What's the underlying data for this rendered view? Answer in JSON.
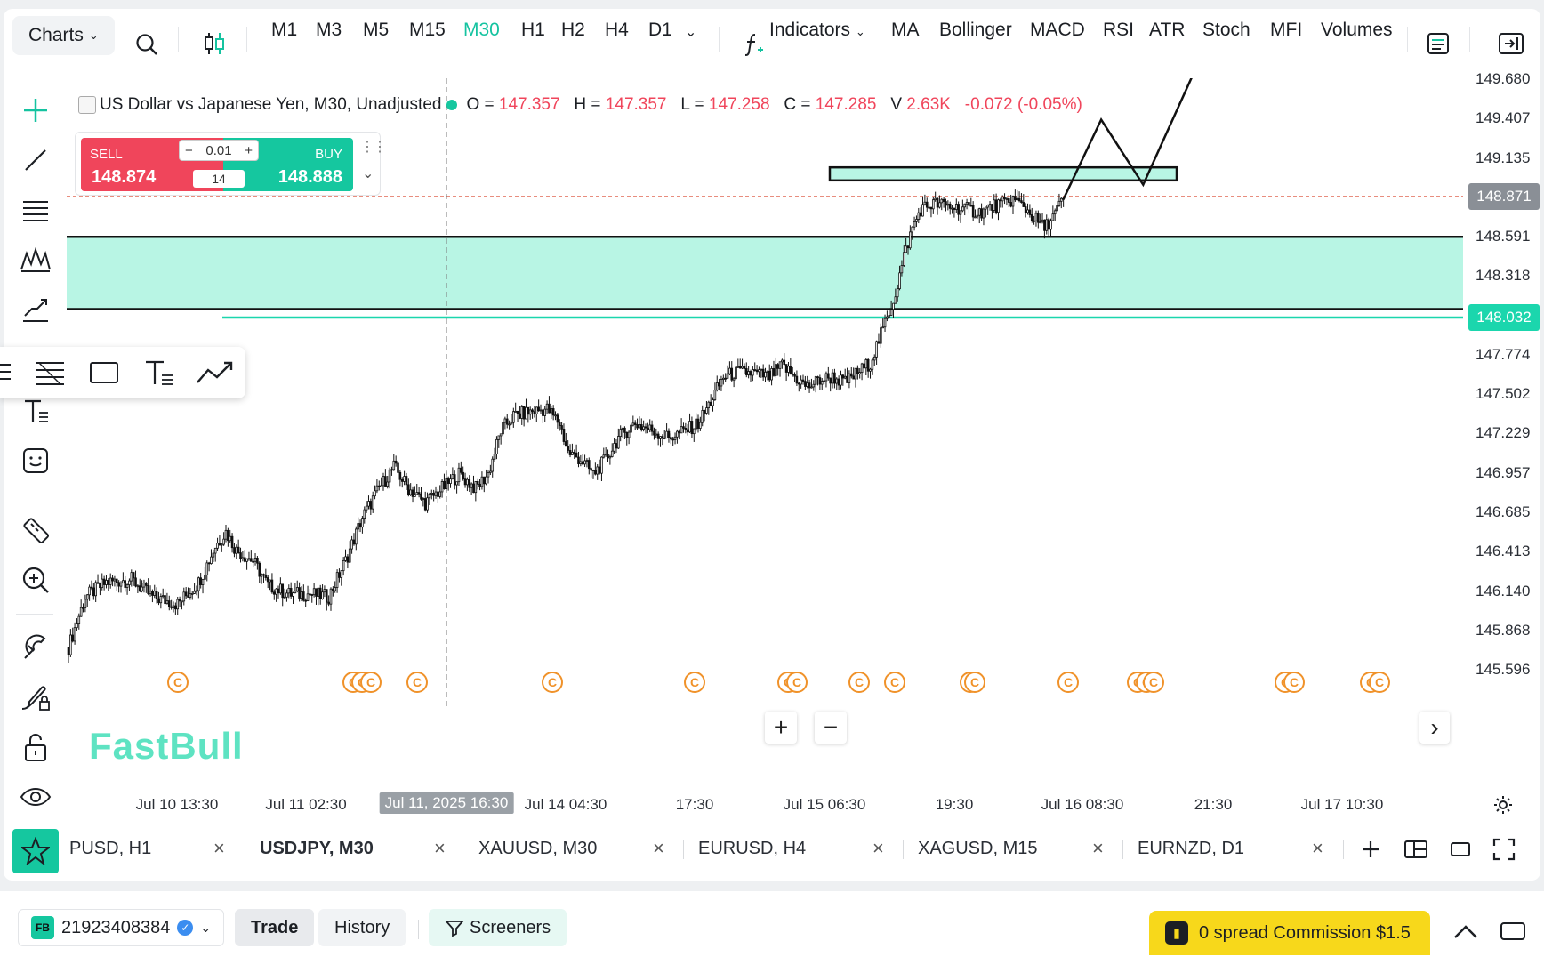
{
  "toolbar": {
    "charts_label": "Charts",
    "timeframes": [
      "M1",
      "M3",
      "M5",
      "M15",
      "M30",
      "H1",
      "H2",
      "H4",
      "D1"
    ],
    "active_timeframe": "M30",
    "indicators_label": "Indicators",
    "indicator_shortcuts": [
      "MA",
      "Bollinger",
      "MACD",
      "RSI",
      "ATR",
      "Stoch",
      "MFI",
      "Volumes"
    ]
  },
  "legend": {
    "title": "US Dollar vs Japanese Yen, M30, Unadjusted",
    "o_label": "O =",
    "o_value": "147.357",
    "h_label": "H =",
    "h_value": "147.357",
    "l_label": "L =",
    "l_value": "147.258",
    "c_label": "C =",
    "c_value": "147.285",
    "v_label": "V",
    "v_value": "2.63K",
    "change": "-0.072 (-0.05%)"
  },
  "trade_widget": {
    "sell_label": "SELL",
    "sell_price": "148.874",
    "buy_label": "BUY",
    "buy_price": "148.888",
    "quantity": "0.01",
    "spread": "14"
  },
  "price_axis": {
    "labels": [
      "149.680",
      "149.407",
      "149.135",
      "148.591",
      "148.318",
      "147.774",
      "147.502",
      "147.229",
      "146.957",
      "146.685",
      "146.413",
      "146.140",
      "145.868",
      "145.596"
    ],
    "current_price_tag": "148.871",
    "line_price_tag": "148.032"
  },
  "time_axis": {
    "labels": [
      "Jul 10 13:30",
      "Jul 11 02:30",
      "Jul 11, 2025 16:30",
      "Jul 14 04:30",
      "17:30",
      "Jul 15 06:30",
      "19:30",
      "Jul 16 08:30",
      "21:30",
      "Jul 17 10:30"
    ],
    "highlighted": "Jul 11, 2025 16:30"
  },
  "watermark": "FastBull",
  "event_marker_glyph": "C",
  "tabs": [
    {
      "label": "PUSD, H1",
      "active": false
    },
    {
      "label": "USDJPY, M30",
      "active": true
    },
    {
      "label": "XAUUSD, M30",
      "active": false
    },
    {
      "label": "EURUSD, H4",
      "active": false
    },
    {
      "label": "XAGUSD, M15",
      "active": false
    },
    {
      "label": "EURNZD, D1",
      "active": false
    }
  ],
  "bottom_bar": {
    "account_badge": "FB",
    "account_number": "21923408384",
    "trade_tab": "Trade",
    "history_tab": "History",
    "screeners": "Screeners",
    "promo": "0 spread Commission $1.5"
  },
  "colors": {
    "accent": "#15c3a0",
    "sell": "#f0455b",
    "buy": "#15c79f",
    "zone_fill": "#b8f5e4",
    "candle": "#111111"
  },
  "chart_data": {
    "type": "candlestick",
    "symbol": "USDJPY",
    "timeframe": "M30",
    "ylim": [
      145.45,
      149.8
    ],
    "y_ticks": [
      149.68,
      149.407,
      149.135,
      148.591,
      148.318,
      147.774,
      147.502,
      147.229,
      146.957,
      146.685,
      146.413,
      146.14,
      145.868,
      145.596
    ],
    "close_path": [
      [
        0,
        145.75
      ],
      [
        8,
        146.1
      ],
      [
        18,
        146.2
      ],
      [
        30,
        146.22
      ],
      [
        40,
        146.1
      ],
      [
        52,
        146.05
      ],
      [
        62,
        146.2
      ],
      [
        70,
        146.45
      ],
      [
        75,
        146.55
      ],
      [
        80,
        146.42
      ],
      [
        88,
        146.35
      ],
      [
        95,
        146.18
      ],
      [
        105,
        146.12
      ],
      [
        115,
        146.12
      ],
      [
        124,
        146.1
      ],
      [
        132,
        146.35
      ],
      [
        140,
        146.65
      ],
      [
        148,
        146.85
      ],
      [
        155,
        147.0
      ],
      [
        162,
        146.85
      ],
      [
        170,
        146.75
      ],
      [
        178,
        146.85
      ],
      [
        186,
        146.95
      ],
      [
        194,
        146.85
      ],
      [
        200,
        146.95
      ],
      [
        206,
        147.25
      ],
      [
        212,
        147.35
      ],
      [
        220,
        147.38
      ],
      [
        228,
        147.4
      ],
      [
        234,
        147.3
      ],
      [
        238,
        147.1
      ],
      [
        244,
        147.05
      ],
      [
        250,
        146.95
      ],
      [
        256,
        147.05
      ],
      [
        262,
        147.2
      ],
      [
        270,
        147.3
      ],
      [
        278,
        147.25
      ],
      [
        286,
        147.2
      ],
      [
        294,
        147.25
      ],
      [
        300,
        147.3
      ],
      [
        306,
        147.45
      ],
      [
        312,
        147.62
      ],
      [
        318,
        147.65
      ],
      [
        326,
        147.65
      ],
      [
        334,
        147.62
      ],
      [
        340,
        147.7
      ],
      [
        346,
        147.62
      ],
      [
        352,
        147.55
      ],
      [
        358,
        147.6
      ],
      [
        364,
        147.62
      ],
      [
        370,
        147.58
      ],
      [
        376,
        147.65
      ],
      [
        382,
        147.72
      ],
      [
        388,
        147.95
      ],
      [
        394,
        148.2
      ],
      [
        398,
        148.45
      ],
      [
        402,
        148.65
      ],
      [
        406,
        148.78
      ],
      [
        412,
        148.82
      ],
      [
        420,
        148.8
      ],
      [
        428,
        148.78
      ],
      [
        434,
        148.76
      ],
      [
        440,
        148.8
      ],
      [
        446,
        148.82
      ],
      [
        450,
        148.85
      ],
      [
        455,
        148.8
      ],
      [
        460,
        148.72
      ],
      [
        465,
        148.65
      ],
      [
        470,
        148.75
      ],
      [
        474,
        148.85
      ]
    ],
    "projection_path": [
      [
        474,
        148.85
      ],
      [
        492,
        149.4
      ],
      [
        512,
        148.95
      ],
      [
        536,
        149.72
      ]
    ],
    "zones": [
      {
        "from": 148.09,
        "to": 148.59,
        "label": ""
      },
      {
        "from": 148.98,
        "to": 149.07,
        "label": ""
      }
    ],
    "horizontal_lines": [
      148.032,
      148.871
    ],
    "crosshair_x_label": "Jul 11, 2025 16:30"
  }
}
